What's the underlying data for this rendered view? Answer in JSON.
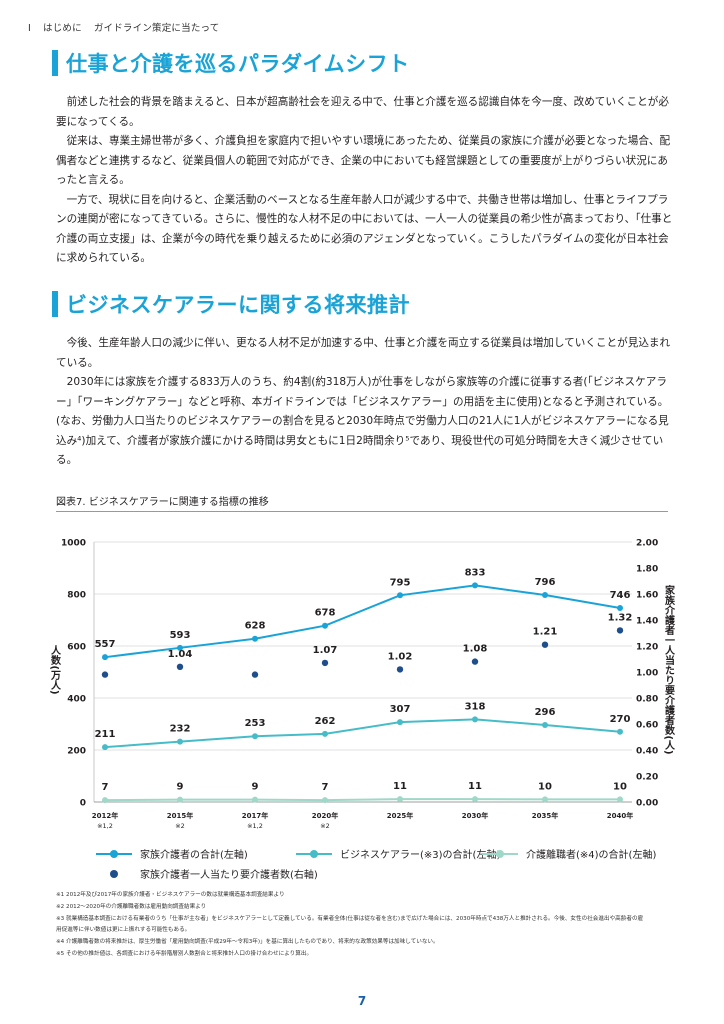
{
  "header": {
    "chapter": "Ⅰ",
    "section": "はじめに",
    "title": "ガイドライン策定に当たって"
  },
  "section1": {
    "heading": "仕事と介護を巡るパラダイムシフト",
    "paragraphs": [
      "前述した社会的背景を踏まえると、日本が超高齢社会を迎える中で、仕事と介護を巡る認識自体を今一度、改めていくことが必要になってくる。",
      "従来は、専業主婦世帯が多く、介護負担を家庭内で担いやすい環境にあったため、従業員の家族に介護が必要となった場合、配偶者などと連携するなど、従業員個人の範囲で対応ができ、企業の中においても経営課題としての重要度が上がりづらい状況にあったと言える。",
      "一方で、現状に目を向けると、企業活動のベースとなる生産年齢人口が減少する中で、共働き世帯は増加し、仕事とライフプランの連関が密になってきている。さらに、慢性的な人材不足の中においては、一人一人の従業員の希少性が高まっており、「仕事と介護の両立支援」は、企業が今の時代を乗り越えるために必須のアジェンダとなっていく。こうしたパラダイムの変化が日本社会に求められている。"
    ]
  },
  "section2": {
    "heading": "ビジネスケアラーに関する将来推計",
    "paragraphs": [
      "今後、生産年齢人口の減少に伴い、更なる人材不足が加速する中、仕事と介護を両立する従業員は増加していくことが見込まれている。",
      "2030年には家族を介護する833万人のうち、約4割(約318万人)が仕事をしながら家族等の介護に従事する者(「ビジネスケアラー」「ワーキングケアラー」などと呼称、本ガイドラインでは「ビジネスケアラー」の用語を主に使用)となると予測されている。(なお、労働力人口当たりのビジネスケアラーの割合を見ると2030年時点で労働力人口の21人に1人がビジネスケアラーになる見込み⁴)加えて、介護者が家族介護にかける時間は男女ともに1日2時間余り⁵であり、現役世代の可処分時間を大きく減少させている。"
    ]
  },
  "figure": {
    "title": "図表7. ビジネスケアラーに関連する指標の推移"
  },
  "chart_data": {
    "type": "line",
    "categories": [
      "2012年",
      "2015年",
      "2017年",
      "2020年",
      "2025年",
      "2030年",
      "2035年",
      "2040年"
    ],
    "category_notes": [
      "※1,2",
      "※2",
      "※1,2",
      "※2",
      "",
      "",
      "",
      ""
    ],
    "ylabel": "人数(万人)",
    "ylabel_right": "家族介護者一人当たり要介護者数(人)",
    "ylim": [
      0,
      1000
    ],
    "ylim_right": [
      0,
      2.0
    ],
    "yticks": [
      "0",
      "200",
      "400",
      "600",
      "800",
      "1000"
    ],
    "yticks_right": [
      "0.00",
      "0.20",
      "0.40",
      "0.60",
      "0.80",
      "1.00",
      "1.20",
      "1.40",
      "1.60",
      "1.80",
      "2.00"
    ],
    "series": [
      {
        "name": "家族介護者の合計(左軸)",
        "axis": "left",
        "style": "line",
        "color": "#1aa3d6",
        "values": [
          557,
          593,
          628,
          678,
          795,
          833,
          796,
          746
        ],
        "labels": [
          "557",
          "593",
          "628",
          "678",
          "795",
          "833",
          "796",
          "746"
        ]
      },
      {
        "name": "ビジネスケアラー(※3)の合計(左軸)",
        "axis": "left",
        "style": "line",
        "color": "#46bcc8",
        "values": [
          211,
          232,
          253,
          262,
          307,
          318,
          296,
          270
        ],
        "labels": [
          "211",
          "232",
          "253",
          "262",
          "307",
          "318",
          "296",
          "270"
        ]
      },
      {
        "name": "介護離職者(※4)の合計(左軸)",
        "axis": "left",
        "style": "line",
        "color": "#9fd8c8",
        "values": [
          7,
          9,
          9,
          7,
          11,
          11,
          10,
          10
        ],
        "labels": [
          "7",
          "9",
          "9",
          "7",
          "11",
          "11",
          "10",
          "10"
        ]
      },
      {
        "name": "家族介護者一人当たり要介護者数(右軸)",
        "axis": "right",
        "style": "dot",
        "color": "#1f4e8c",
        "values": [
          0.98,
          1.04,
          0.98,
          1.07,
          1.02,
          1.08,
          1.21,
          1.32
        ],
        "labels": [
          "",
          "1.04",
          "",
          "1.07",
          "1.02",
          "1.08",
          "1.21",
          "1.32"
        ]
      }
    ]
  },
  "notes": [
    "※1 2012年及び2017年の家族介護者・ビジネスケアラーの数は就業構造基本調査結果より",
    "※2 2012～2020年の介護離職者数は雇用動向調査結果より",
    "※3 就業構造基本調査における有業者のうち「仕事が主な者」をビジネスケアラーとして定義している。有業者全体(仕事は従な者を含む)まで広げた場合には、2030年時点で438万人と推計される。今後、女性の社会進出や高齢者の雇",
    "用促進等に伴い数値は更に上振れする可能性もある。",
    "※4 介護離職者数の将来推計は、厚生労働省「雇用動向調査(平成29年～令和3年)」を基に算出したものであり、将来的な政策効果等は加味していない。",
    "※5 その他の推計値は、各調査における年齢階層別人数割合と将来推計人口の掛け合わせにより算出。"
  ],
  "page_number": "7"
}
